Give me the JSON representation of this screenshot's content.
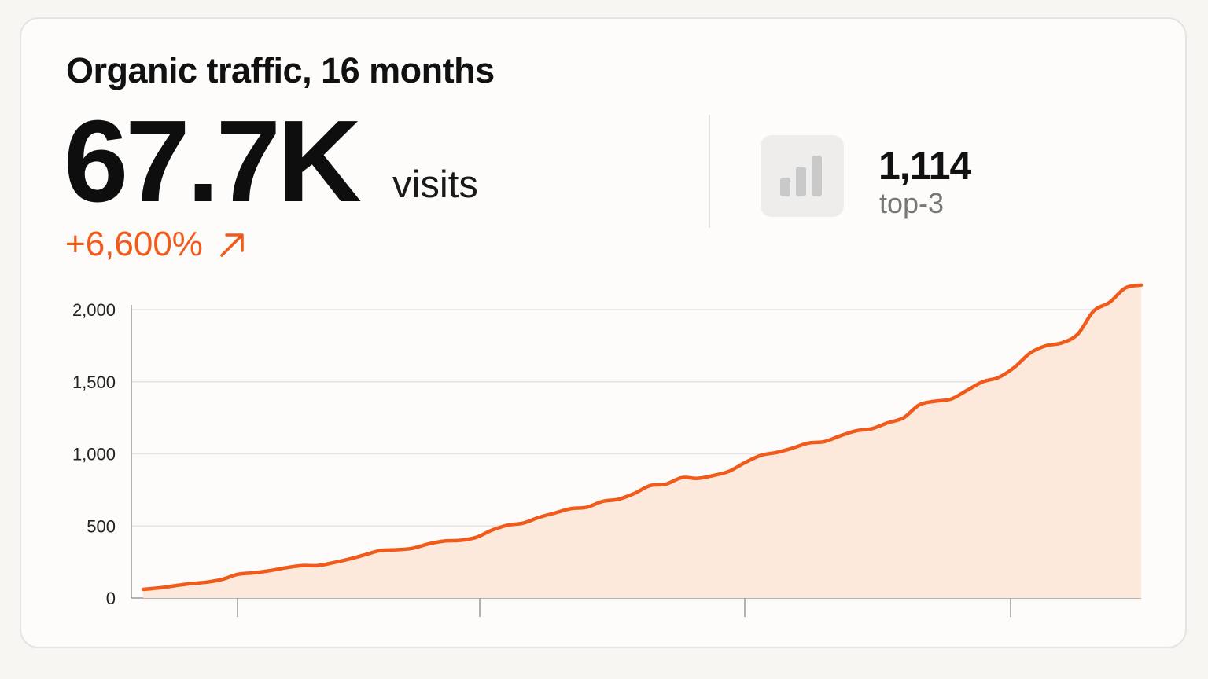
{
  "card": {
    "title": "Organic traffic, 16 months",
    "metric_value": "67.7K",
    "metric_unit": "visits",
    "delta": "+6,600%",
    "delta_icon": "arrow-up-right-icon",
    "stat": {
      "icon": "bar-chart-icon",
      "value": "1,114",
      "label": "top-3"
    }
  },
  "colors": {
    "accent": "#f05a1a",
    "area_fill": "#fde9dc",
    "grid": "#e4e4e4",
    "axis": "#9a9a9a"
  },
  "chart_data": {
    "type": "area",
    "title": "",
    "xlabel": "",
    "ylabel": "",
    "ylim": [
      0,
      2000
    ],
    "yticks": [
      0,
      500,
      1000,
      1500,
      2000
    ],
    "ytick_labels": [
      "0",
      "500",
      "1,000",
      "1,500",
      "2,000"
    ],
    "xticks_count": 4,
    "grid": true,
    "series": [
      {
        "values": [
          60,
          70,
          85,
          100,
          110,
          130,
          165,
          175,
          190,
          210,
          225,
          225,
          245,
          270,
          300,
          330,
          335,
          345,
          375,
          395,
          400,
          420,
          470,
          505,
          520,
          560,
          590,
          620,
          630,
          670,
          685,
          725,
          780,
          790,
          835,
          830,
          850,
          880,
          940,
          990,
          1010,
          1040,
          1075,
          1085,
          1125,
          1160,
          1175,
          1215,
          1250,
          1340,
          1365,
          1380,
          1440,
          1500,
          1530,
          1600,
          1700,
          1750,
          1770,
          1830,
          1990,
          2050,
          2150,
          2170
        ]
      }
    ]
  }
}
